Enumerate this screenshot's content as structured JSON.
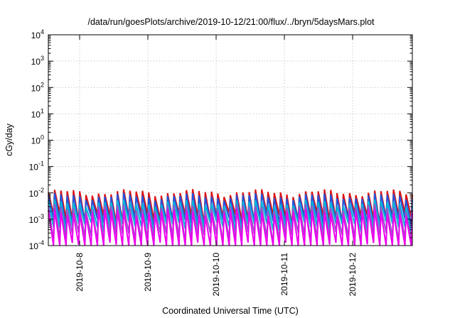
{
  "chart_data": {
    "type": "line",
    "title": "/data/run/goesPlots/archive/2019-10-12/21:00/flux/../bryn/5daysMars.plot",
    "xlabel": "Coordinated Universal Time (UTC)",
    "ylabel": "cGy/day",
    "y_scale": "log",
    "ylim": [
      0.0001,
      10000
    ],
    "y_ticks": [
      {
        "base": "10",
        "exp": "-4",
        "value": 0.0001
      },
      {
        "base": "10",
        "exp": "-3",
        "value": 0.001
      },
      {
        "base": "10",
        "exp": "-2",
        "value": 0.01
      },
      {
        "base": "10",
        "exp": "-1",
        "value": 0.1
      },
      {
        "base": "10",
        "exp": "0",
        "value": 1
      },
      {
        "base": "10",
        "exp": "1",
        "value": 10
      },
      {
        "base": "10",
        "exp": "2",
        "value": 100
      },
      {
        "base": "10",
        "exp": "3",
        "value": 1000
      },
      {
        "base": "10",
        "exp": "4",
        "value": 10000
      }
    ],
    "xlim": [
      "2019-10-07T13:00",
      "2019-10-12T21:00"
    ],
    "x_ticks": [
      "2019-10-8",
      "2019-10-9",
      "2019-10-10",
      "2019-10-11",
      "2019-10-12"
    ],
    "x_tick_dates": [
      "2019-10-08T00:00",
      "2019-10-09T00:00",
      "2019-10-10T00:00",
      "2019-10-11T00:00",
      "2019-10-12T00:00"
    ],
    "grid": true,
    "sawtooth_cycles": 58,
    "series": [
      {
        "color": "#dd1111",
        "peak": 0.0105,
        "trough": 0.0012
      },
      {
        "color": "#2255dd",
        "peak": 0.0075,
        "trough": 0.00085
      },
      {
        "color": "#00b8d8",
        "peak": 0.0042,
        "trough": 0.00055
      },
      {
        "color": "#9955cc",
        "peak": 0.0028,
        "trough": 0.00022
      },
      {
        "color": "#ee00ee",
        "peak": 0.0019,
        "trough": 9e-05
      }
    ]
  }
}
